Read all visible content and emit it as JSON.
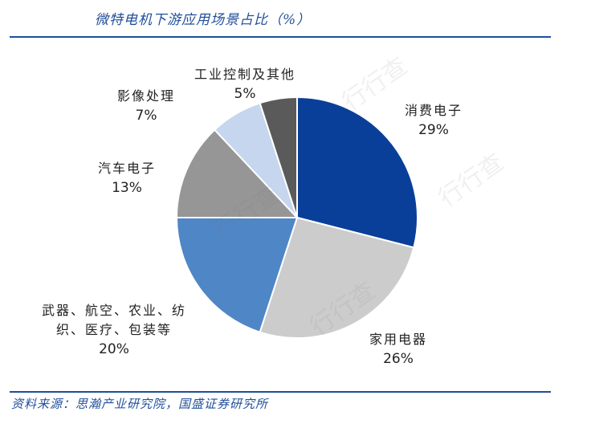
{
  "title": "微特电机下游应用场景占比（%）",
  "source": "资料来源：思瀚产业研究院，国盛证券研究所",
  "watermark": "行行查",
  "chart_data": {
    "type": "pie",
    "title": "微特电机下游应用场景占比（%）",
    "start_angle_deg": 0,
    "direction": "clockwise",
    "slices": [
      {
        "label": [
          "消费电子"
        ],
        "value": 29,
        "display": "29%",
        "color": "#0a3f99"
      },
      {
        "label": [
          "家用电器"
        ],
        "value": 26,
        "display": "26%",
        "color": "#cccccc"
      },
      {
        "label": [
          "武器、航空、农业、纺",
          "织、医疗、包装等"
        ],
        "value": 20,
        "display": "20%",
        "color": "#4f86c6"
      },
      {
        "label": [
          "汽车电子"
        ],
        "value": 13,
        "display": "13%",
        "color": "#969696"
      },
      {
        "label": [
          "影像处理"
        ],
        "value": 7,
        "display": "7%",
        "color": "#c5d6ee"
      },
      {
        "label": [
          "工业控制及其他"
        ],
        "value": 5,
        "display": "5%",
        "color": "#5a5a5a"
      }
    ]
  }
}
